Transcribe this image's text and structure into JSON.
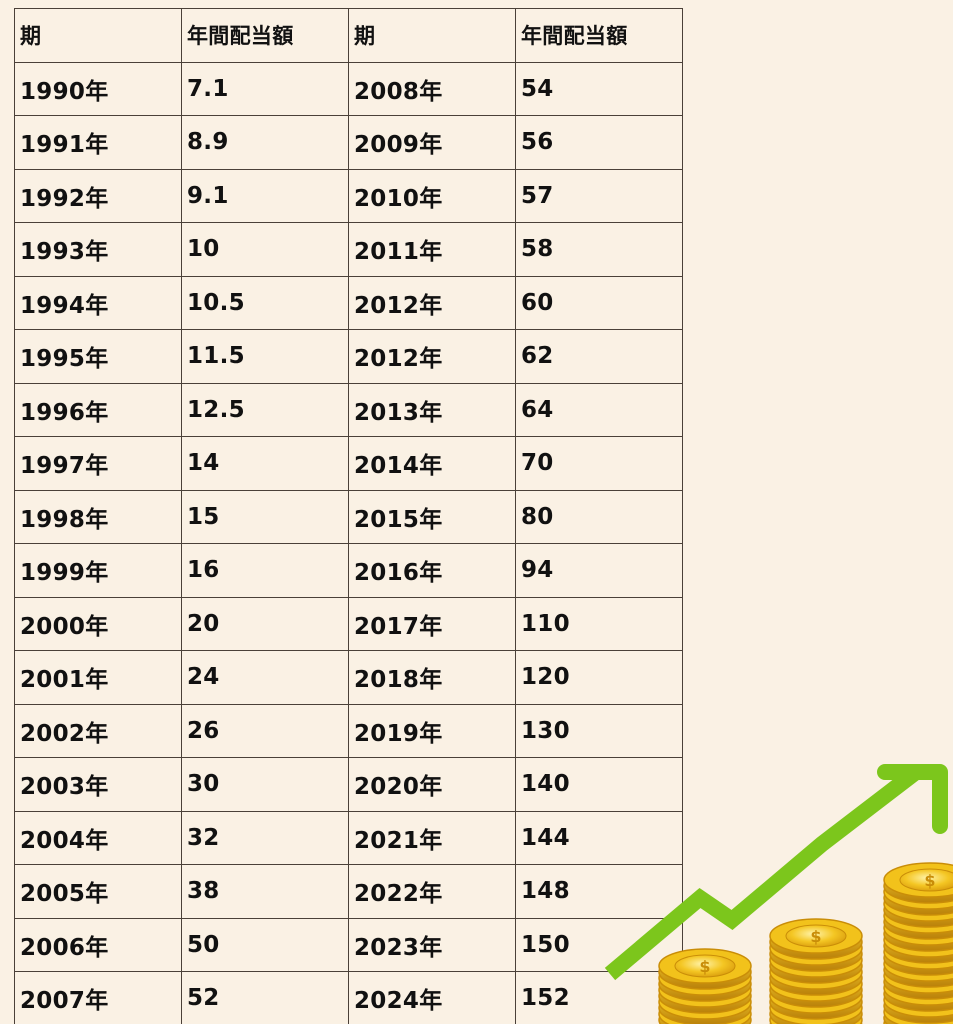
{
  "table": {
    "headers": [
      "期",
      "年間配当額",
      "期",
      "年間配当額"
    ],
    "rows": [
      [
        "1990年",
        "7.1",
        "2008年",
        "54"
      ],
      [
        "1991年",
        "8.9",
        "2009年",
        "56"
      ],
      [
        "1992年",
        "9.1",
        "2010年",
        "57"
      ],
      [
        "1993年",
        "10",
        "2011年",
        "58"
      ],
      [
        "1994年",
        "10.5",
        "2012年",
        "60"
      ],
      [
        "1995年",
        "11.5",
        "2012年",
        "62"
      ],
      [
        "1996年",
        "12.5",
        "2013年",
        "64"
      ],
      [
        "1997年",
        "14",
        "2014年",
        "70"
      ],
      [
        "1998年",
        "15",
        "2015年",
        "80"
      ],
      [
        "1999年",
        "16",
        "2016年",
        "94"
      ],
      [
        "2000年",
        "20",
        "2017年",
        "110"
      ],
      [
        "2001年",
        "24",
        "2018年",
        "120"
      ],
      [
        "2002年",
        "26",
        "2019年",
        "130"
      ],
      [
        "2003年",
        "30",
        "2020年",
        "140"
      ],
      [
        "2004年",
        "32",
        "2021年",
        "144"
      ],
      [
        "2005年",
        "38",
        "2022年",
        "148"
      ],
      [
        "2006年",
        "50",
        "2023年",
        "150"
      ],
      [
        "2007年",
        "52",
        "2024年",
        "152"
      ]
    ]
  },
  "illustration": {
    "icon": "coin-stacks-with-rising-arrow-icon",
    "coin_symbol": "$",
    "colors": {
      "background": "#faf1e4",
      "arrow": "#7cc61c",
      "coin": "#f2c21b",
      "coin_edge": "#c98d08"
    }
  }
}
